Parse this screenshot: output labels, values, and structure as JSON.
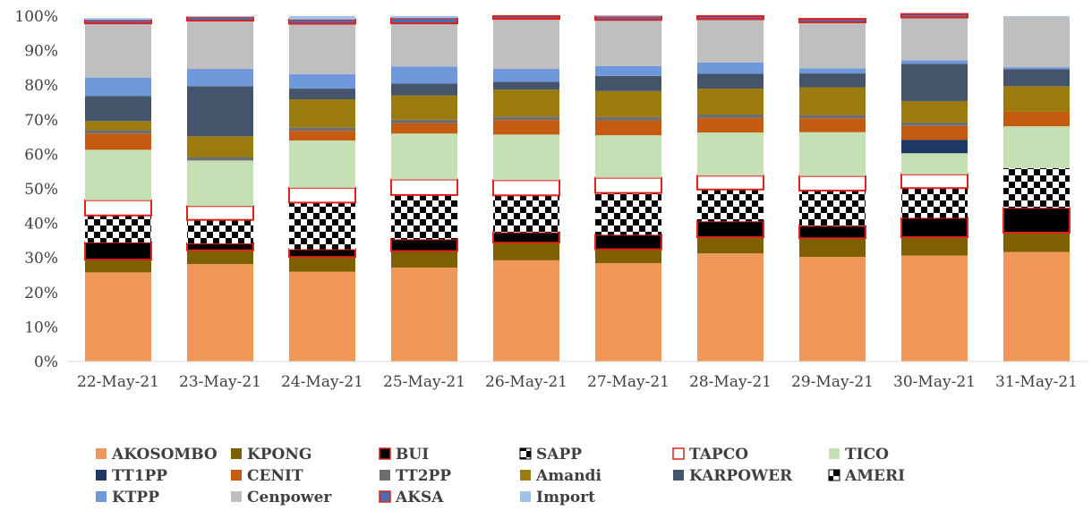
{
  "chart_data": {
    "type": "bar",
    "stacked": true,
    "title": "",
    "xlabel": "",
    "ylabel": "",
    "ylim": [
      0,
      100
    ],
    "y_ticks": [
      "0%",
      "10%",
      "20%",
      "30%",
      "40%",
      "50%",
      "60%",
      "70%",
      "80%",
      "90%",
      "100%"
    ],
    "grid": false,
    "legend_position": "bottom",
    "categories": [
      "22-May-21",
      "23-May-21",
      "24-May-21",
      "25-May-21",
      "26-May-21",
      "27-May-21",
      "28-May-21",
      "29-May-21",
      "30-May-21",
      "31-May-21"
    ],
    "series": [
      {
        "name": "AKOSOMBO",
        "color": "#F0985A",
        "pattern": "solid",
        "values": [
          25.8,
          28.2,
          26.0,
          27.2,
          29.3,
          28.5,
          31.3,
          30.3,
          30.7,
          31.7
        ]
      },
      {
        "name": "KPONG",
        "color": "#7F6000",
        "pattern": "solid",
        "values": [
          3.7,
          4.0,
          4.3,
          4.8,
          5.1,
          4.0,
          4.7,
          5.4,
          5.3,
          5.6
        ]
      },
      {
        "name": "BUI",
        "color": "#000000",
        "stroke": "#E0201B",
        "pattern": "solid",
        "values": [
          5.0,
          2.0,
          2.2,
          3.4,
          3.0,
          4.2,
          4.6,
          3.6,
          5.6,
          7.2
        ]
      },
      {
        "name": "SAPP",
        "color": "#000000",
        "pattern": "checker",
        "values": [
          7.8,
          6.8,
          13.5,
          12.8,
          10.7,
          12.1,
          9.2,
          10.2,
          8.6,
          11.5
        ]
      },
      {
        "name": "TAPCO",
        "color": "#FFFFFF",
        "stroke": "#E0201B",
        "pattern": "solid",
        "values": [
          4.4,
          4.0,
          4.3,
          4.5,
          4.4,
          4.4,
          4.0,
          4.2,
          4.0,
          0.0
        ]
      },
      {
        "name": "TICO",
        "color": "#C5E0B4",
        "pattern": "solid",
        "values": [
          14.6,
          13.2,
          13.7,
          13.3,
          13.2,
          12.3,
          12.5,
          12.7,
          6.1,
          12.1
        ]
      },
      {
        "name": "TT1PP",
        "color": "#203864",
        "pattern": "solid",
        "values": [
          0.0,
          0.0,
          0.0,
          0.0,
          0.0,
          0.0,
          0.0,
          0.0,
          3.9,
          0.0
        ]
      },
      {
        "name": "CENIT",
        "color": "#C55A11",
        "pattern": "solid",
        "values": [
          4.7,
          0.0,
          2.8,
          3.0,
          4.2,
          4.3,
          4.2,
          4.0,
          4.0,
          4.2
        ]
      },
      {
        "name": "TT2PP",
        "color": "#6E6E6E",
        "pattern": "solid",
        "values": [
          1.0,
          1.0,
          1.0,
          1.0,
          1.0,
          1.0,
          1.0,
          1.0,
          1.0,
          0.0
        ]
      },
      {
        "name": "Amandi",
        "color": "#9C7B0E",
        "pattern": "solid",
        "values": [
          2.6,
          6.0,
          8.1,
          7.0,
          7.8,
          7.5,
          7.5,
          8.0,
          6.2,
          7.4
        ]
      },
      {
        "name": "KARPOWER",
        "color": "#44546A",
        "pattern": "solid",
        "values": [
          7.3,
          14.5,
          3.1,
          3.5,
          2.3,
          4.4,
          4.3,
          4.0,
          10.8,
          4.9
        ]
      },
      {
        "name": "AMERI",
        "color": "#000000",
        "pattern": "checker",
        "values": [
          0.0,
          0.0,
          0.0,
          0.0,
          0.0,
          0.0,
          0.0,
          0.0,
          0.0,
          0.0
        ]
      },
      {
        "name": "KTPP",
        "color": "#6F98DB",
        "pattern": "solid",
        "values": [
          5.3,
          5.0,
          4.2,
          4.9,
          3.7,
          2.8,
          3.3,
          1.5,
          1.0,
          0.6
        ]
      },
      {
        "name": "Cenpower",
        "color": "#BFBFBF",
        "pattern": "solid",
        "values": [
          15.7,
          14.0,
          14.6,
          12.5,
          14.5,
          13.4,
          12.5,
          13.3,
          12.4,
          14.6
        ]
      },
      {
        "name": "AKSA",
        "color": "#4A6EB0",
        "stroke": "#E0201B",
        "pattern": "solid",
        "values": [
          1.0,
          1.0,
          1.2,
          1.5,
          0.8,
          1.0,
          0.9,
          1.0,
          1.0,
          0.0
        ]
      },
      {
        "name": "Import",
        "color": "#9DC3E6",
        "pattern": "solid",
        "values": [
          0.5,
          0.3,
          1.0,
          0.6,
          0.0,
          0.2,
          0.0,
          0.0,
          0.0,
          0.2
        ]
      }
    ]
  }
}
